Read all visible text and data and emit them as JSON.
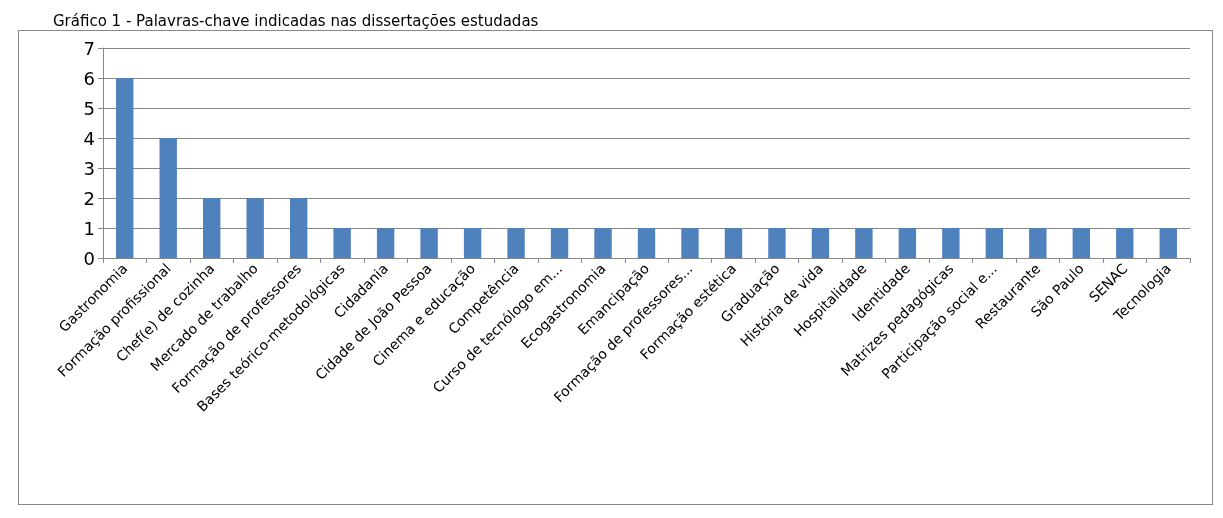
{
  "chart_data": {
    "type": "bar",
    "title": "Gráfico 1 - Palavras-chave indicadas nas dissertações estudadas",
    "categories": [
      "Gastronomia",
      "Formação profissional",
      "Chef(e) de cozinha",
      "Mercado de trabalho",
      "Formação de professores",
      "Bases teórico-metodológicas",
      "Cidadania",
      "Cidade de João Pessoa",
      "Cinema e educação",
      "Competência",
      "Curso de tecnólogo em...",
      "Ecogastronomia",
      "Emancipação",
      "Formação de professores...",
      "Formação estética",
      "Graduação",
      "História de vida",
      "Hospitalidade",
      "Identidade",
      "Matrizes pedagógicas",
      "Participação social e...",
      "Restaurante",
      "São Paulo",
      "SENAC",
      "Tecnologia"
    ],
    "values": [
      6,
      4,
      2,
      2,
      2,
      1,
      1,
      1,
      1,
      1,
      1,
      1,
      1,
      1,
      1,
      1,
      1,
      1,
      1,
      1,
      1,
      1,
      1,
      1,
      1
    ],
    "color": "#4f81bd",
    "ylim": [
      0,
      7
    ],
    "yticks": [
      0,
      1,
      2,
      3,
      4,
      5,
      6,
      7
    ],
    "grid": "y"
  }
}
